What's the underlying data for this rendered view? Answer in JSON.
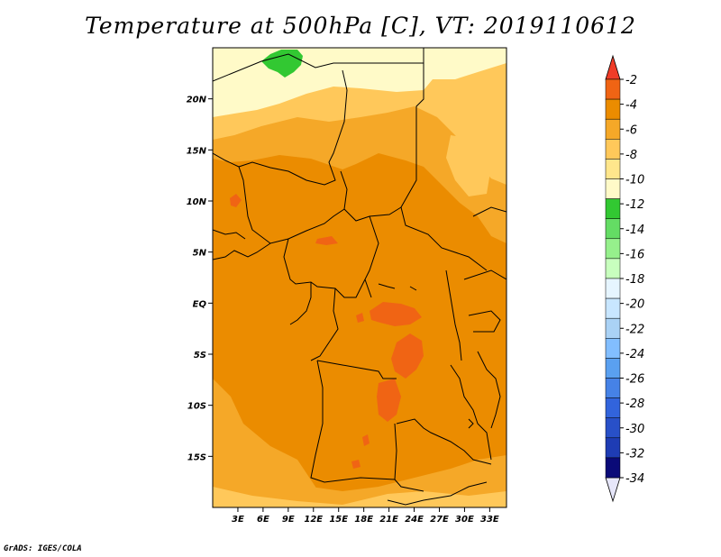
{
  "title": "Temperature at 500hPa [C], VT: 2019110612",
  "credit": "GrADS: IGES/COLA",
  "map": {
    "lon_range": [
      0,
      35
    ],
    "lat_range": [
      -20,
      25
    ],
    "lat_ticks": [
      {
        "lat": 20,
        "label": "20N"
      },
      {
        "lat": 15,
        "label": "15N"
      },
      {
        "lat": 10,
        "label": "10N"
      },
      {
        "lat": 5,
        "label": "5N"
      },
      {
        "lat": 0,
        "label": "EQ"
      },
      {
        "lat": -5,
        "label": "5S"
      },
      {
        "lat": -10,
        "label": "10S"
      },
      {
        "lat": -15,
        "label": "15S"
      }
    ],
    "lon_ticks": [
      {
        "lon": 3,
        "label": "3E"
      },
      {
        "lon": 6,
        "label": "6E"
      },
      {
        "lon": 9,
        "label": "9E"
      },
      {
        "lon": 12,
        "label": "12E"
      },
      {
        "lon": 15,
        "label": "15E"
      },
      {
        "lon": 18,
        "label": "18E"
      },
      {
        "lon": 21,
        "label": "21E"
      },
      {
        "lon": 24,
        "label": "24E"
      },
      {
        "lon": 27,
        "label": "27E"
      },
      {
        "lon": 30,
        "label": "30E"
      },
      {
        "lon": 33,
        "label": "33E"
      }
    ]
  },
  "colorbar": {
    "colors": [
      "#e6e6fa",
      "#0a0a78",
      "#1e3cb4",
      "#2850c8",
      "#3264dc",
      "#4682e6",
      "#5aa0f0",
      "#82beff",
      "#aad2f5",
      "#c8e6ff",
      "#e6f5ff",
      "#c8ffbe",
      "#96f08c",
      "#64dc64",
      "#32c832",
      "#fffac8",
      "#ffe68c",
      "#ffc85a",
      "#f5a828",
      "#eb8c00",
      "#f06414",
      "#f03c28"
    ],
    "labels": [
      "-2",
      "-4",
      "-6",
      "-8",
      "-10",
      "-12",
      "-14",
      "-16",
      "-18",
      "-20",
      "-22",
      "-24",
      "-26",
      "-28",
      "-30",
      "-32",
      "-34"
    ]
  },
  "legend_colors": {
    "minus4_to_minus2": "#f06414",
    "minus6_to_minus4": "#eb8c00",
    "minus8_to_minus6": "#f5a828",
    "minus10_to_minus8": "#ffc85a",
    "minus12_to_minus10": "#fffac8",
    "minus14_to_minus12": "#32c832"
  }
}
